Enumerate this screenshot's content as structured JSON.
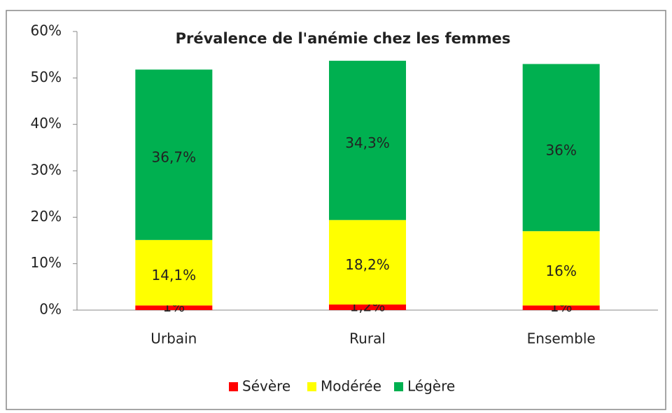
{
  "chart_data": {
    "type": "stacked-bar",
    "title": "Prévalence de l'anémie chez les femmes",
    "categories": [
      "Urbain",
      "Rural",
      "Ensemble"
    ],
    "series": [
      {
        "name": "Sévère",
        "color": "#ff0000",
        "values": [
          1,
          1.2,
          1
        ],
        "value_labels": [
          "1%",
          "1,2%",
          "1%"
        ]
      },
      {
        "name": "Modérée",
        "color": "#ffff00",
        "values": [
          14.1,
          18.2,
          16
        ],
        "value_labels": [
          "14,1%",
          "18,2%",
          "16%"
        ]
      },
      {
        "name": "Légère",
        "color": "#00b050",
        "values": [
          36.7,
          34.3,
          36
        ],
        "value_labels": [
          "36,7%",
          "34,3%",
          "36%"
        ]
      }
    ],
    "ylim": [
      0,
      60
    ],
    "yticks": [
      {
        "value": 0,
        "label": "0%"
      },
      {
        "value": 10,
        "label": "10%"
      },
      {
        "value": 20,
        "label": "20%"
      },
      {
        "value": 30,
        "label": "30%"
      },
      {
        "value": 40,
        "label": "40%"
      },
      {
        "value": 50,
        "label": "50%"
      },
      {
        "value": 60,
        "label": "60%"
      }
    ],
    "legend": "bottom"
  }
}
